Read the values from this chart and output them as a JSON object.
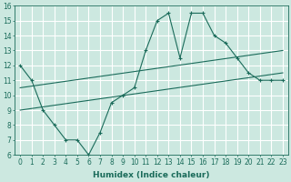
{
  "title": "",
  "xlabel": "Humidex (Indice chaleur)",
  "ylabel": "",
  "xlim": [
    -0.5,
    23.5
  ],
  "ylim": [
    6,
    16
  ],
  "xticks": [
    0,
    1,
    2,
    3,
    4,
    5,
    6,
    7,
    8,
    9,
    10,
    11,
    12,
    13,
    14,
    15,
    16,
    17,
    18,
    19,
    20,
    21,
    22,
    23
  ],
  "yticks": [
    6,
    7,
    8,
    9,
    10,
    11,
    12,
    13,
    14,
    15,
    16
  ],
  "bg_color": "#cce8e0",
  "line_color": "#1a6b5a",
  "grid_color": "#ffffff",
  "line1_x": [
    0,
    1,
    2,
    3,
    4,
    5,
    6,
    7,
    8,
    9,
    10,
    11,
    12,
    13,
    14,
    15,
    16,
    17,
    18,
    19,
    20,
    21,
    22,
    23
  ],
  "line1_y": [
    12,
    11,
    9,
    8,
    7,
    7,
    6,
    7.5,
    9.5,
    10,
    10.5,
    13,
    15,
    15.5,
    12.5,
    15.5,
    15.5,
    14,
    13.5,
    12.5,
    11.5,
    11,
    11,
    11
  ],
  "line2_x": [
    0,
    23
  ],
  "line2_y": [
    9.0,
    11.5
  ],
  "line3_x": [
    0,
    23
  ],
  "line3_y": [
    10.5,
    13.0
  ],
  "font_size_tick": 5.5,
  "font_size_label": 6.5
}
